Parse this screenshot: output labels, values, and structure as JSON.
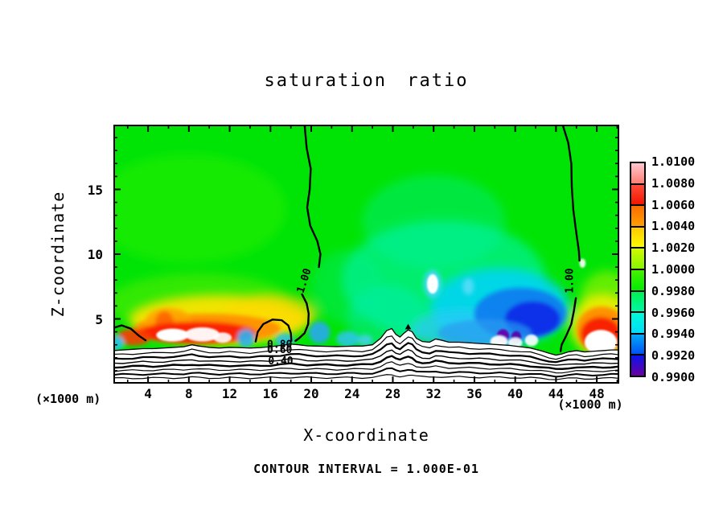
{
  "chart_data": {
    "type": "filled-contour",
    "title": "saturation ratio",
    "xlabel": "X-coordinate",
    "ylabel": "Z-coordinate",
    "x_units_label": "(×1000 m)",
    "y_units_label": "(×1000 m)",
    "footer": "CONTOUR INTERVAL = 1.000E-01",
    "xlim": [
      0.6,
      50.2
    ],
    "ylim": [
      0,
      20
    ],
    "grid": false,
    "x_major_ticks": [
      4,
      8,
      12,
      16,
      20,
      24,
      28,
      32,
      36,
      40,
      44,
      48
    ],
    "x_minor_ticks": [
      2,
      6,
      10,
      14,
      18,
      22,
      26,
      30,
      34,
      38,
      42,
      46,
      50
    ],
    "y_major_ticks": [
      5,
      10,
      15
    ],
    "y_minor_ticks": [
      1,
      2,
      3,
      4,
      6,
      7,
      8,
      9,
      11,
      12,
      13,
      14,
      16,
      17,
      18,
      19
    ],
    "colorbar": {
      "position": "right",
      "labels": [
        "1.0100",
        "1.0080",
        "1.0060",
        "1.0040",
        "1.0020",
        "1.0000",
        "0.9980",
        "0.9960",
        "0.9940",
        "0.9920",
        "0.9900"
      ],
      "segments": [
        {
          "from": 1.008,
          "to": 1.01,
          "top": "#ffc6ce",
          "bottom": "#ff7d72"
        },
        {
          "from": 1.006,
          "to": 1.008,
          "top": "#ff4b38",
          "bottom": "#f21600"
        },
        {
          "from": 1.004,
          "to": 1.006,
          "top": "#fb6c00",
          "bottom": "#ff9e00"
        },
        {
          "from": 1.002,
          "to": 1.004,
          "top": "#ffc900",
          "bottom": "#fbfb00"
        },
        {
          "from": 1.0,
          "to": 1.002,
          "top": "#d2fa00",
          "bottom": "#86f500"
        },
        {
          "from": 0.998,
          "to": 1.0,
          "top": "#46f000",
          "bottom": "#00ec00"
        },
        {
          "from": 0.996,
          "to": 0.998,
          "top": "#00f050",
          "bottom": "#00f6a4"
        },
        {
          "from": 0.994,
          "to": 0.996,
          "top": "#00fad6",
          "bottom": "#00dcfa"
        },
        {
          "from": 0.992,
          "to": 0.994,
          "top": "#00aaf6",
          "bottom": "#0052f6"
        },
        {
          "from": 0.99,
          "to": 0.992,
          "top": "#0a14ee",
          "bottom": "#6a00a0"
        }
      ]
    },
    "contour_interval": 0.1,
    "contour_labels": [
      {
        "text": "1.00",
        "x": 19.3,
        "z": 7.95,
        "rot": -72
      },
      {
        "text": "1.00",
        "x": 45.35,
        "z": 7.95,
        "rot": -90
      },
      {
        "text": "0.80",
        "x": 16.9,
        "z": 3.0,
        "rot": 0
      },
      {
        "text": "0.60",
        "x": 16.9,
        "z": 2.6,
        "rot": 0
      },
      {
        "text": "0.40",
        "x": 17.0,
        "z": 1.75,
        "rot": 0
      }
    ],
    "field": {
      "base_color": "#00e405",
      "blobs": [
        {
          "cx": 8,
          "cz": 13.5,
          "rx": 9.5,
          "rz": 4.2,
          "c": "#2cf000",
          "o": 0.5,
          "l": "soft"
        },
        {
          "cx": 9,
          "cz": 6.2,
          "rx": 9,
          "rz": 2.3,
          "c": "#7df000",
          "o": 0.4,
          "l": "soft"
        },
        {
          "cx": 33,
          "cz": 8,
          "rx": 10,
          "rz": 4.6,
          "c": "#00f2a6",
          "o": 0.65,
          "l": "soft"
        },
        {
          "cx": 32,
          "cz": 12.5,
          "rx": 7,
          "rz": 3.6,
          "c": "#00f0b0",
          "o": 0.35,
          "l": "soft"
        },
        {
          "cx": 27.5,
          "cz": 5,
          "rx": 4,
          "rz": 2.6,
          "c": "#00eebc",
          "o": 0.45,
          "l": "soft"
        },
        {
          "cx": 23.5,
          "cz": 7.5,
          "rx": 3.5,
          "rz": 2.8,
          "c": "#00f09e",
          "o": 0.3,
          "l": "soft"
        },
        {
          "cx": 49,
          "cz": 6.6,
          "rx": 2.6,
          "rz": 2.1,
          "c": "#b4f400",
          "o": 0.55,
          "l": "soft"
        },
        {
          "cx": 11,
          "cz": 4.9,
          "rx": 8.8,
          "rz": 1.9,
          "c": "#ffe400",
          "o": 0.92,
          "l": "soft"
        },
        {
          "cx": 16,
          "cz": 5.4,
          "rx": 4.6,
          "rz": 1.5,
          "c": "#ffd800",
          "o": 0.7,
          "l": "soft"
        },
        {
          "cx": 48.6,
          "cz": 4.5,
          "rx": 3.2,
          "rz": 2.4,
          "c": "#f6ee00",
          "o": 0.88,
          "l": "soft"
        },
        {
          "cx": 38.5,
          "cz": 5.9,
          "rx": 6.8,
          "rz": 3.0,
          "c": "#00d4f4",
          "o": 0.9,
          "l": "soft"
        },
        {
          "cx": 34.8,
          "cz": 4.1,
          "rx": 5,
          "rz": 1.5,
          "c": "#2cc8f8",
          "o": 0.75,
          "l": "soft"
        },
        {
          "cx": 9.8,
          "cz": 4.25,
          "rx": 7.2,
          "rz": 1.15,
          "c": "#ff9000",
          "o": 0.95,
          "l": "med"
        },
        {
          "cx": 6,
          "cz": 4.75,
          "rx": 2.3,
          "rz": 1.1,
          "c": "#ffa200",
          "o": 0.85,
          "l": "med"
        },
        {
          "cx": 5.6,
          "cz": 4.7,
          "rx": 0.9,
          "rz": 0.9,
          "c": "#fc5a00",
          "o": 0.8,
          "l": "med"
        },
        {
          "cx": 8.8,
          "cz": 3.95,
          "rx": 5.8,
          "rz": 0.85,
          "c": "#fa1e00",
          "o": 0.95,
          "l": "med"
        },
        {
          "cx": 2.6,
          "cz": 3.6,
          "rx": 1.7,
          "rz": 0.65,
          "c": "#fa3c00",
          "o": 0.9,
          "l": "med"
        },
        {
          "cx": 48.5,
          "cz": 4.15,
          "rx": 2.5,
          "rz": 1.8,
          "c": "#ff8c00",
          "o": 0.95,
          "l": "med"
        },
        {
          "cx": 48.4,
          "cz": 3.8,
          "rx": 2.0,
          "rz": 1.35,
          "c": "#f81e00",
          "o": 0.95,
          "l": "med"
        },
        {
          "cx": 40.5,
          "cz": 5.4,
          "rx": 4.5,
          "rz": 2.0,
          "c": "#0a78f0",
          "o": 0.88,
          "l": "med"
        },
        {
          "cx": 41.7,
          "cz": 5.0,
          "rx": 2.7,
          "rz": 1.35,
          "c": "#0a28e8",
          "o": 0.92,
          "l": "med"
        },
        {
          "cx": 37,
          "cz": 3.9,
          "rx": 4.6,
          "rz": 1.05,
          "c": "#2a9af0",
          "o": 0.7,
          "l": "med"
        },
        {
          "cx": 0.9,
          "cz": 3.15,
          "rx": 0.75,
          "rz": 0.55,
          "c": "#20c8f0",
          "o": 0.9,
          "l": "med"
        },
        {
          "cx": 13.6,
          "cz": 3.5,
          "rx": 0.85,
          "rz": 0.7,
          "c": "#28b4f4",
          "o": 0.9,
          "l": "med"
        },
        {
          "cx": 17.4,
          "cz": 3.35,
          "rx": 0.95,
          "rz": 0.55,
          "c": "#30c0f0",
          "o": 0.85,
          "l": "med"
        },
        {
          "cx": 20.8,
          "cz": 3.95,
          "rx": 1.05,
          "rz": 0.85,
          "c": "#28a8f0",
          "o": 0.9,
          "l": "med"
        },
        {
          "cx": 23.6,
          "cz": 3.45,
          "rx": 1.15,
          "rz": 0.6,
          "c": "#30c4f4",
          "o": 0.85,
          "l": "med"
        },
        {
          "cx": 25.3,
          "cz": 3.35,
          "rx": 0.7,
          "rz": 0.45,
          "c": "#48d0f4",
          "o": 0.8,
          "l": "med"
        },
        {
          "cx": 31.9,
          "cz": 7.7,
          "rx": 0.9,
          "rz": 1.1,
          "c": "#40d8f8",
          "o": 0.9,
          "l": "med"
        },
        {
          "cx": 35.4,
          "cz": 7.5,
          "rx": 0.55,
          "rz": 0.65,
          "c": "#58dcf8",
          "o": 0.9,
          "l": "med"
        },
        {
          "cx": 6.4,
          "cz": 3.75,
          "rx": 1.6,
          "rz": 0.5,
          "c": "#ffffff",
          "o": 1,
          "l": "fine"
        },
        {
          "cx": 9.3,
          "cz": 3.8,
          "rx": 1.7,
          "rz": 0.55,
          "c": "#ffffff",
          "o": 0.95,
          "l": "fine"
        },
        {
          "cx": 11.3,
          "cz": 3.55,
          "rx": 0.9,
          "rz": 0.4,
          "c": "#ffffff",
          "o": 0.9,
          "l": "fine"
        },
        {
          "cx": 48.4,
          "cz": 3.2,
          "rx": 1.6,
          "rz": 0.95,
          "c": "#ffffff",
          "o": 1,
          "l": "fine"
        },
        {
          "cx": 31.9,
          "cz": 7.7,
          "rx": 0.55,
          "rz": 0.75,
          "c": "#ffffff",
          "o": 1,
          "l": "fine"
        },
        {
          "cx": 38.8,
          "cz": 3.7,
          "rx": 0.6,
          "rz": 0.5,
          "c": "#6600b0",
          "o": 0.95,
          "l": "fine"
        },
        {
          "cx": 40.1,
          "cz": 3.6,
          "rx": 0.5,
          "rz": 0.45,
          "c": "#5800a8",
          "o": 0.9,
          "l": "fine"
        },
        {
          "cx": 38.4,
          "cz": 3.25,
          "rx": 0.85,
          "rz": 0.45,
          "c": "#ffffff",
          "o": 0.95,
          "l": "fine"
        },
        {
          "cx": 40.0,
          "cz": 3.15,
          "rx": 0.7,
          "rz": 0.4,
          "c": "#ffffff",
          "o": 0.9,
          "l": "fine"
        },
        {
          "cx": 41.6,
          "cz": 3.35,
          "rx": 0.65,
          "rz": 0.45,
          "c": "#ffffff",
          "o": 0.9,
          "l": "fine"
        },
        {
          "cx": 46.6,
          "cz": 9.3,
          "rx": 0.3,
          "rz": 0.35,
          "c": "#ffffff",
          "o": 0.9,
          "l": "fine"
        }
      ],
      "terrain_top": [
        [
          0.6,
          2.55
        ],
        [
          1.5,
          2.6
        ],
        [
          2.5,
          2.65
        ],
        [
          3.5,
          2.7
        ],
        [
          4.5,
          2.7
        ],
        [
          5.5,
          2.75
        ],
        [
          6.5,
          2.8
        ],
        [
          7.5,
          2.85
        ],
        [
          8.3,
          3.0
        ],
        [
          9.0,
          2.9
        ],
        [
          10,
          2.8
        ],
        [
          11,
          2.75
        ],
        [
          12,
          2.8
        ],
        [
          13,
          2.78
        ],
        [
          14,
          2.75
        ],
        [
          15,
          2.78
        ],
        [
          16,
          2.85
        ],
        [
          17,
          2.95
        ],
        [
          18,
          3.05
        ],
        [
          18.8,
          3.0
        ],
        [
          19.6,
          2.92
        ],
        [
          20.5,
          2.9
        ],
        [
          21.5,
          2.88
        ],
        [
          22.5,
          2.86
        ],
        [
          23.5,
          2.88
        ],
        [
          24.2,
          2.9
        ],
        [
          25,
          2.9
        ],
        [
          26,
          3.0
        ],
        [
          26.8,
          3.5
        ],
        [
          27.4,
          4.1
        ],
        [
          27.9,
          4.25
        ],
        [
          28.3,
          3.8
        ],
        [
          28.7,
          3.6
        ],
        [
          29.1,
          3.9
        ],
        [
          29.5,
          4.15
        ],
        [
          29.9,
          4.0
        ],
        [
          30.3,
          3.5
        ],
        [
          30.9,
          3.25
        ],
        [
          31.6,
          3.2
        ],
        [
          32.2,
          3.45
        ],
        [
          32.8,
          3.35
        ],
        [
          33.5,
          3.2
        ],
        [
          34.5,
          3.2
        ],
        [
          35.5,
          3.15
        ],
        [
          36.5,
          3.1
        ],
        [
          37.5,
          3.05
        ],
        [
          38.5,
          3.0
        ],
        [
          39.5,
          2.95
        ],
        [
          40.5,
          2.85
        ],
        [
          41.5,
          2.75
        ],
        [
          42.5,
          2.55
        ],
        [
          43.3,
          2.35
        ],
        [
          44.0,
          2.2
        ],
        [
          44.6,
          2.3
        ],
        [
          45.2,
          2.45
        ],
        [
          46.0,
          2.55
        ],
        [
          46.8,
          2.45
        ],
        [
          47.6,
          2.5
        ],
        [
          48.6,
          2.55
        ],
        [
          49.4,
          2.6
        ],
        [
          50.2,
          2.6
        ]
      ],
      "terrain_peak_marker": [
        [
          29.2,
          4.2
        ],
        [
          29.8,
          4.2
        ],
        [
          29.5,
          4.62
        ]
      ],
      "terrain_line_scales": [
        0.87,
        0.745,
        0.62,
        0.5,
        0.385,
        0.27,
        0.16
      ],
      "terrain_line_widths": [
        1.2,
        2.2,
        1.4,
        2.4,
        1.2,
        2.0,
        1.2
      ],
      "contour_lines": [
        {
          "w": 2.4,
          "pts": [
            [
              19.35,
              20
            ],
            [
              19.55,
              18.2
            ],
            [
              19.95,
              16.6
            ],
            [
              19.85,
              15.0
            ],
            [
              19.6,
              13.6
            ],
            [
              19.9,
              12.2
            ],
            [
              20.6,
              11.0
            ],
            [
              20.9,
              10.0
            ],
            [
              20.75,
              9.0
            ]
          ]
        },
        {
          "w": 2.4,
          "pts": [
            [
              19.1,
              6.9
            ],
            [
              19.55,
              6.2
            ],
            [
              19.75,
              5.4
            ],
            [
              19.7,
              4.6
            ],
            [
              19.35,
              3.9
            ],
            [
              18.8,
              3.5
            ],
            [
              18.45,
              3.3
            ]
          ]
        },
        {
          "w": 2.4,
          "pts": [
            [
              14.55,
              3.25
            ],
            [
              14.75,
              4.0
            ],
            [
              15.3,
              4.6
            ],
            [
              16.2,
              4.95
            ],
            [
              17.1,
              4.9
            ],
            [
              17.75,
              4.5
            ],
            [
              18.0,
              3.9
            ],
            [
              18.05,
              3.3
            ]
          ]
        },
        {
          "w": 2.4,
          "pts": [
            [
              0.6,
              4.3
            ],
            [
              1.4,
              4.5
            ],
            [
              2.3,
              4.25
            ],
            [
              3.1,
              3.7
            ],
            [
              3.75,
              3.35
            ]
          ]
        },
        {
          "w": 2.4,
          "pts": [
            [
              44.65,
              20
            ],
            [
              45.2,
              18.6
            ],
            [
              45.5,
              17.0
            ],
            [
              45.55,
              15.2
            ],
            [
              45.7,
              13.4
            ],
            [
              46.0,
              11.6
            ],
            [
              46.25,
              10.2
            ],
            [
              46.3,
              9.5
            ]
          ]
        },
        {
          "w": 2.4,
          "pts": [
            [
              45.95,
              6.6
            ],
            [
              45.75,
              5.6
            ],
            [
              45.5,
              4.6
            ],
            [
              45.0,
              3.7
            ],
            [
              44.55,
              3.0
            ],
            [
              44.45,
              2.5
            ]
          ]
        }
      ]
    }
  }
}
